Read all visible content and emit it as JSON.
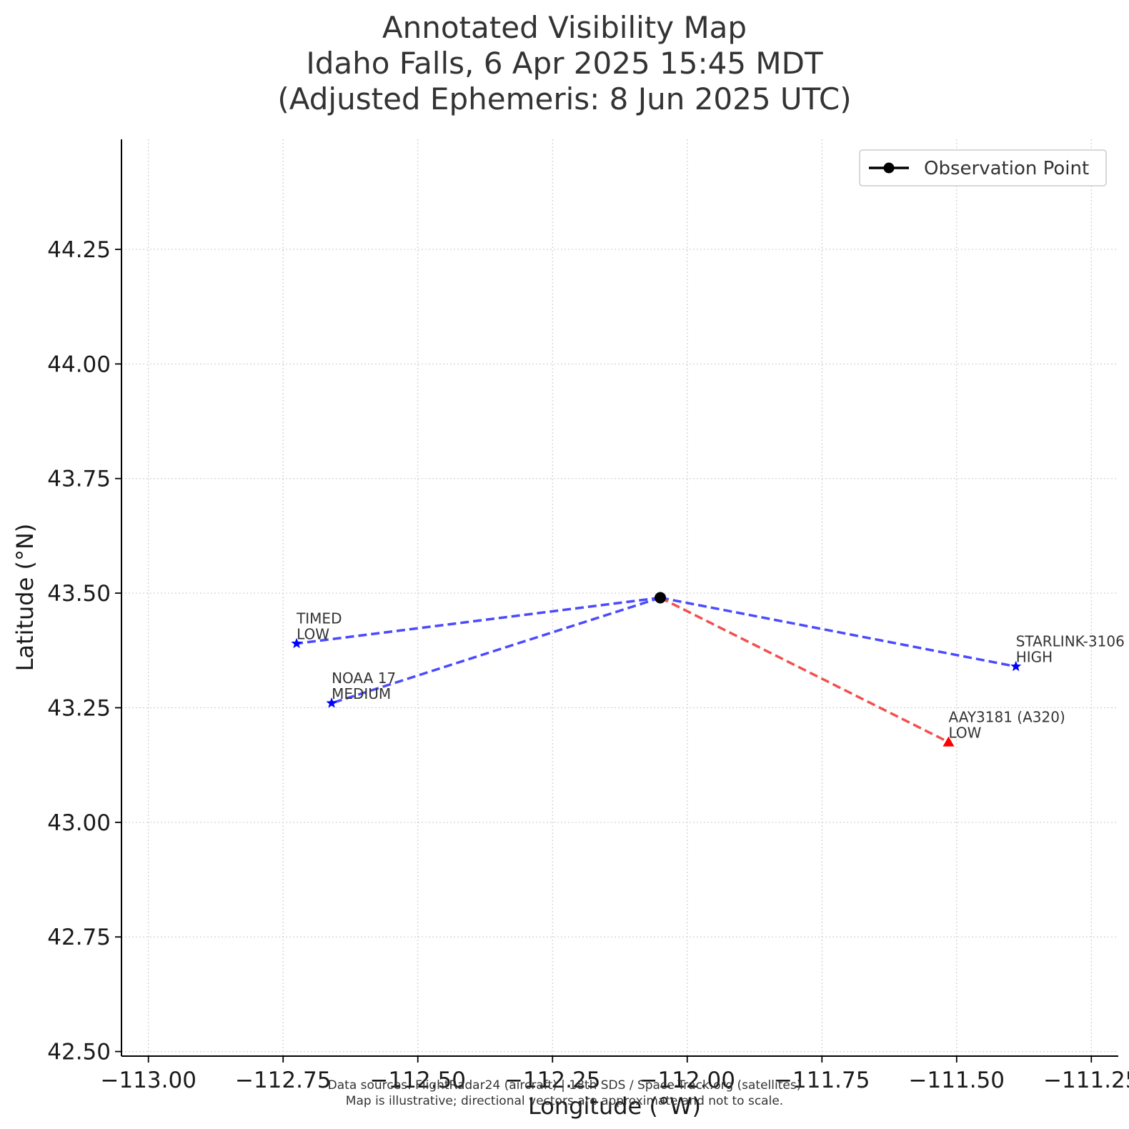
{
  "chart_data": {
    "type": "scatter",
    "title_lines": [
      "Annotated Visibility Map",
      "Idaho Falls, 6 Apr 2025 15:45 MDT",
      "(Adjusted Ephemeris: 8 Jun 2025 UTC)"
    ],
    "xlabel": "Longitude (°W)",
    "ylabel": "Latitude (°N)",
    "xlim": [
      -113.05,
      -111.2
    ],
    "ylim": [
      42.49,
      44.49
    ],
    "xticks": [
      -113.0,
      -112.75,
      -112.5,
      -112.25,
      -112.0,
      -111.75,
      -111.5,
      -111.25
    ],
    "xtick_labels": [
      "−113.00",
      "−112.75",
      "−112.50",
      "−112.25",
      "−112.00",
      "−111.75",
      "−111.50",
      "−111.25"
    ],
    "yticks": [
      42.5,
      42.75,
      43.0,
      43.25,
      43.5,
      43.75,
      44.0,
      44.25
    ],
    "ytick_labels": [
      "42.50",
      "42.75",
      "43.00",
      "43.25",
      "43.50",
      "43.75",
      "44.00",
      "44.25"
    ],
    "grid": true,
    "legend_position": "top-right",
    "legend": [
      {
        "label": "Observation Point",
        "color": "#000000",
        "marker": "circle"
      }
    ],
    "observation_point": {
      "x": -112.05,
      "y": 43.49,
      "color": "#000000"
    },
    "objects": [
      {
        "name": "TIMED",
        "visibility": "LOW",
        "x": -112.725,
        "y": 43.39,
        "kind": "satellite",
        "marker": "star",
        "color": "#0000ff",
        "line_color": "#4a4aff"
      },
      {
        "name": "NOAA 17",
        "visibility": "MEDIUM",
        "x": -112.66,
        "y": 43.26,
        "kind": "satellite",
        "marker": "star",
        "color": "#0000ff",
        "line_color": "#4a4aff"
      },
      {
        "name": "STARLINK-3106",
        "visibility": "HIGH",
        "x": -111.39,
        "y": 43.34,
        "kind": "satellite",
        "marker": "star",
        "color": "#0000ff",
        "line_color": "#4a4aff"
      },
      {
        "name": "AAY3181 (A320)",
        "visibility": "LOW",
        "x": -111.515,
        "y": 43.175,
        "kind": "aircraft",
        "marker": "triangle",
        "color": "#ff0000",
        "line_color": "#f25050"
      }
    ],
    "footnote_lines": [
      "Data sources: FlightRadar24 (aircraft) | 18th SDS / Space-Track.org (satellites)",
      "Map is illustrative; directional vectors are approximate and not to scale."
    ]
  }
}
